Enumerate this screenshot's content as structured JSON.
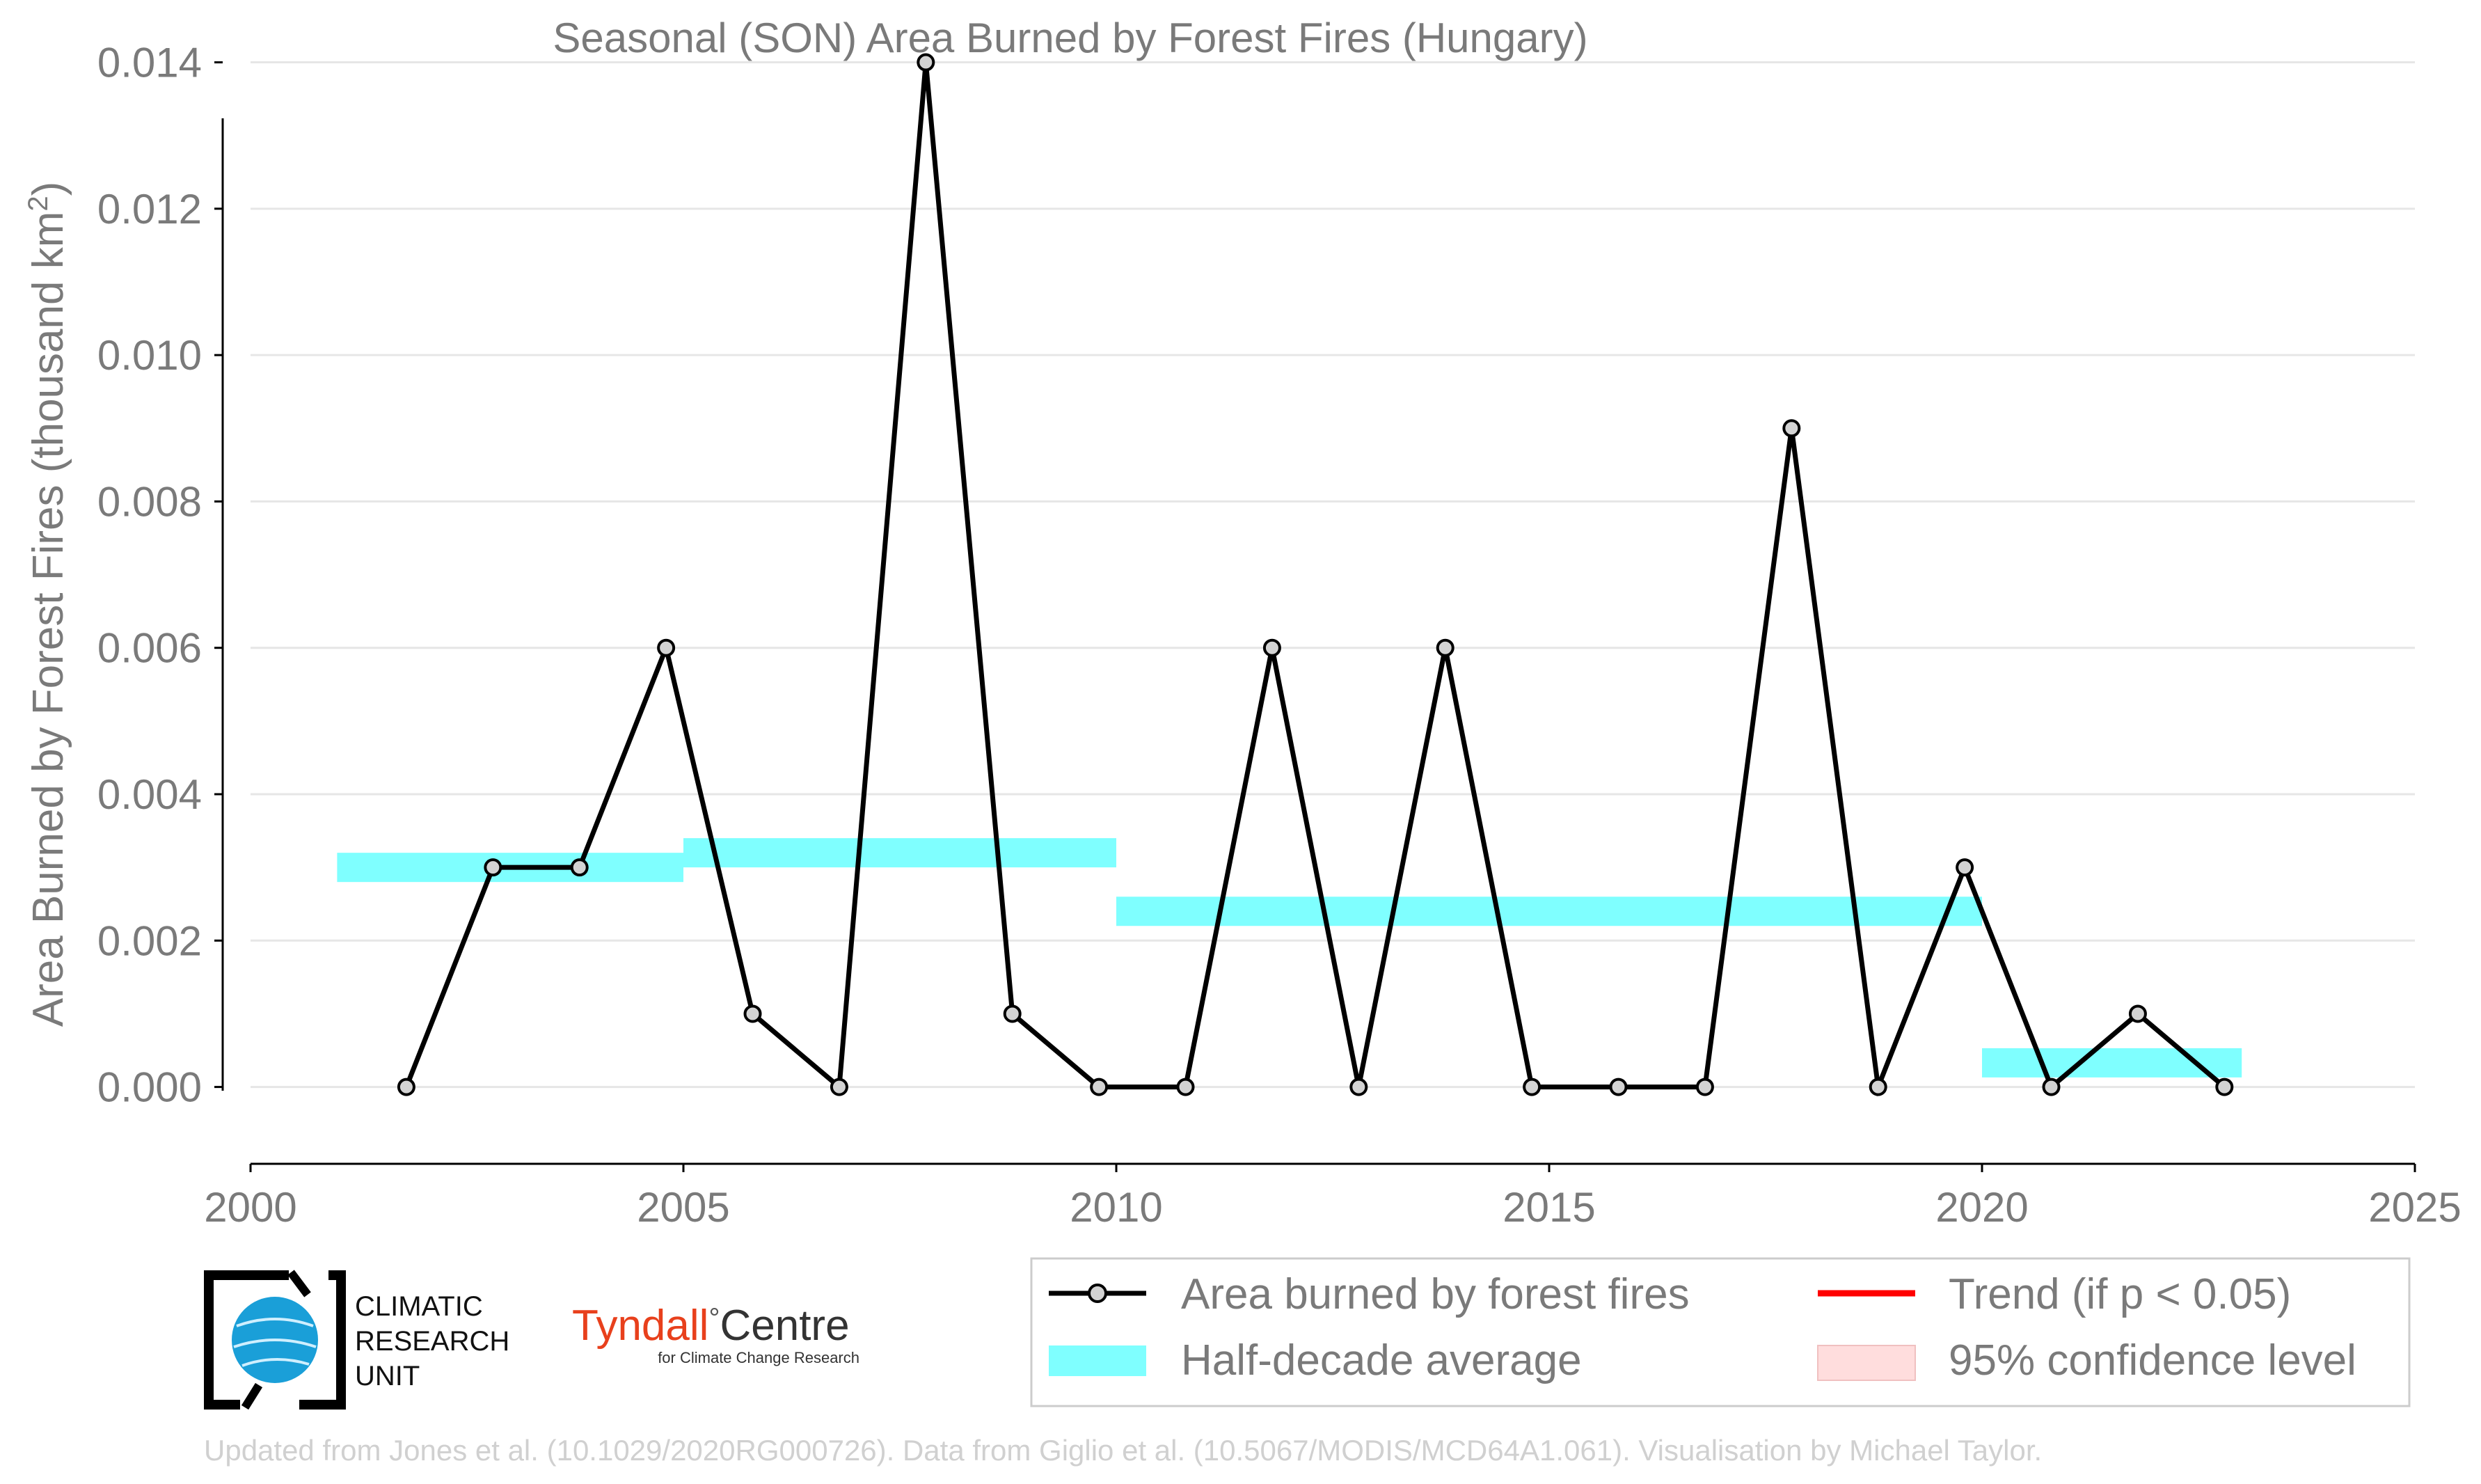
{
  "chart_data": {
    "type": "line",
    "title": "Seasonal (SON) Area Burned by Forest Fires (Hungary)",
    "ylabel_prefix": "Area Burned by Forest Fires (thousand km",
    "ylabel_sup": "2",
    "ylabel_suffix": ")",
    "xlabel": "",
    "xlim": [
      2000,
      2025
    ],
    "ylim": [
      -0.00105,
      0.0143
    ],
    "x_ticks": [
      2000,
      2005,
      2010,
      2015,
      2020,
      2025
    ],
    "y_ticks": [
      0.0,
      0.002,
      0.004,
      0.006,
      0.008,
      0.01,
      0.012,
      0.014
    ],
    "y_tick_labels": [
      "0.000",
      "0.002",
      "0.004",
      "0.006",
      "0.008",
      "0.010",
      "0.012",
      "0.014"
    ],
    "grid": "horizontal",
    "legend_placement": "bottom-right",
    "series": [
      {
        "name": "Area burned by forest fires",
        "color": "#000000",
        "marker_fill": "#d3d3d3",
        "x": [
          2001.8,
          2002.8,
          2003.8,
          2004.8,
          2005.8,
          2006.8,
          2007.8,
          2008.8,
          2009.8,
          2010.8,
          2011.8,
          2012.8,
          2013.8,
          2014.8,
          2015.8,
          2016.8,
          2017.8,
          2018.8,
          2019.8,
          2020.8,
          2021.8,
          2022.8
        ],
        "y": [
          0.0,
          0.003,
          0.003,
          0.006,
          0.001,
          0.0,
          0.014,
          0.001,
          0.0,
          0.0,
          0.006,
          0.0,
          0.006,
          0.0,
          0.0,
          0.0,
          0.009,
          0.0,
          0.003,
          0.0,
          0.001,
          0.0
        ]
      }
    ],
    "half_decade_averages": {
      "name": "Half-decade average",
      "color": "#7fffff",
      "bars": [
        {
          "x_start": 2001,
          "x_end": 2005,
          "value": 0.003
        },
        {
          "x_start": 2005,
          "x_end": 2010,
          "value": 0.0032
        },
        {
          "x_start": 2010,
          "x_end": 2020,
          "value": 0.0024
        },
        {
          "x_start": 2020,
          "x_end": 2023,
          "value": 0.00033
        }
      ]
    },
    "legend": [
      {
        "label": "Area burned by forest fires",
        "kind": "line-marker",
        "color": "#000000"
      },
      {
        "label": "Trend (if p < 0.05)",
        "kind": "line",
        "color": "#ff0000"
      },
      {
        "label": "Half-decade average",
        "kind": "band",
        "color": "#7fffff"
      },
      {
        "label": "95% confidence level",
        "kind": "patch",
        "color": "#ffdddd"
      }
    ]
  },
  "logos": {
    "cru_line1": "CLIMATIC",
    "cru_line2": "RESEARCH",
    "cru_line3": "UNIT",
    "tyndall_name": "Tyndall",
    "tyndall_degree": "°",
    "tyndall_centre": "Centre",
    "tyndall_sub": "for Climate Change Research"
  },
  "footer": {
    "credit": "Updated from Jones et al. (10.1029/2020RG000726). Data from Giglio et al. (10.5067/MODIS/MCD64A1.061). Visualisation by Michael Taylor."
  }
}
